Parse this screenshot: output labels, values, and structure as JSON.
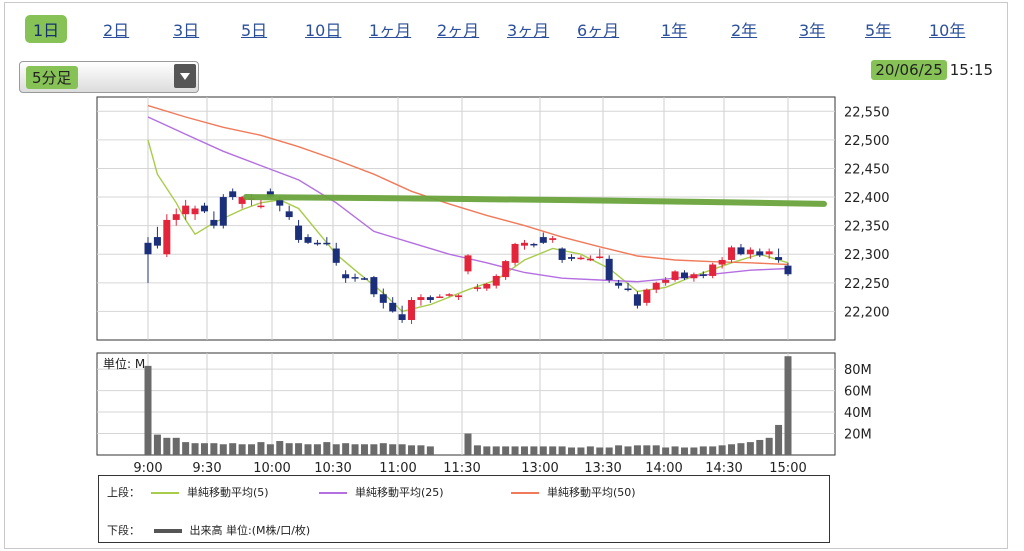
{
  "tabs": [
    "1日",
    "2日",
    "3日",
    "5日",
    "10日",
    "1ヶ月",
    "2ヶ月",
    "3ヶ月",
    "6ヶ月",
    "1年",
    "2年",
    "3年",
    "5年",
    "10年"
  ],
  "active_tab": 0,
  "period_select": {
    "value": "5分足"
  },
  "timestamp": {
    "date": "20/06/25",
    "time": "15:15"
  },
  "colors": {
    "up": "#e3243b",
    "down": "#1c2f7a",
    "ma5": "#a8cc4a",
    "ma25": "#b46fe0",
    "ma50": "#f07a5a",
    "volume": "#6a6a6a",
    "highlight": "#86c256"
  },
  "chart_data": {
    "type": "candlestick",
    "x_ticks": [
      "9:00",
      "9:30",
      "10:00",
      "10:30",
      "11:00",
      "11:30",
      "13:00",
      "13:30",
      "14:00",
      "14:30",
      "15:00"
    ],
    "y_ticks": [
      "22,550",
      "22,500",
      "22,450",
      "22,400",
      "22,350",
      "22,300",
      "22,250",
      "22,200"
    ],
    "ylim": [
      22150,
      22575
    ],
    "candles": [
      [
        22320,
        22330,
        22250,
        22300
      ],
      [
        22330,
        22348,
        22310,
        22315
      ],
      [
        22300,
        22370,
        22295,
        22360
      ],
      [
        22360,
        22380,
        22350,
        22370
      ],
      [
        22370,
        22395,
        22360,
        22385
      ],
      [
        22370,
        22385,
        22360,
        22380
      ],
      [
        22385,
        22390,
        22372,
        22375
      ],
      [
        22360,
        22375,
        22345,
        22350
      ],
      [
        22400,
        22405,
        22345,
        22350
      ],
      [
        22410,
        22415,
        22395,
        22400
      ],
      [
        22388,
        22402,
        22380,
        22400
      ],
      [
        22395,
        22405,
        22385,
        22398
      ],
      [
        22385,
        22395,
        22380,
        22385
      ],
      [
        22410,
        22415,
        22398,
        22400
      ],
      [
        22395,
        22400,
        22375,
        22385
      ],
      [
        22375,
        22385,
        22360,
        22365
      ],
      [
        22350,
        22360,
        22320,
        22325
      ],
      [
        22330,
        22335,
        22318,
        22320
      ],
      [
        22320,
        22325,
        22315,
        22318
      ],
      [
        22320,
        22330,
        22315,
        22318
      ],
      [
        22310,
        22320,
        22280,
        22285
      ],
      [
        22265,
        22272,
        22250,
        22258
      ],
      [
        22260,
        22266,
        22252,
        22258
      ],
      [
        22258,
        22260,
        22255,
        22256
      ],
      [
        22260,
        22262,
        22225,
        22230
      ],
      [
        22230,
        22240,
        22205,
        22215
      ],
      [
        22215,
        22225,
        22198,
        22200
      ],
      [
        22195,
        22210,
        22180,
        22185
      ],
      [
        22185,
        22225,
        22178,
        22220
      ],
      [
        22220,
        22230,
        22210,
        22225
      ],
      [
        22225,
        22228,
        22215,
        22220
      ],
      [
        22225,
        22230,
        22225,
        22226
      ],
      [
        22228,
        22232,
        22226,
        22230
      ],
      [
        22225,
        22230,
        22220,
        22228
      ],
      [
        22270,
        22300,
        22265,
        22298
      ],
      [
        22240,
        22248,
        22235,
        22242
      ],
      [
        22240,
        22250,
        22236,
        22248
      ],
      [
        22245,
        22265,
        22240,
        22262
      ],
      [
        22260,
        22290,
        22255,
        22288
      ],
      [
        22285,
        22320,
        22280,
        22318
      ],
      [
        22315,
        22325,
        22308,
        22320
      ],
      [
        22318,
        22320,
        22312,
        22316
      ],
      [
        22330,
        22338,
        22318,
        22320
      ],
      [
        22325,
        22332,
        22320,
        22328
      ],
      [
        22310,
        22312,
        22285,
        22290
      ],
      [
        22295,
        22300,
        22288,
        22292
      ],
      [
        22292,
        22298,
        22290,
        22294
      ],
      [
        22292,
        22298,
        22288,
        22292
      ],
      [
        22295,
        22310,
        22292,
        22296
      ],
      [
        22292,
        22298,
        22250,
        22255
      ],
      [
        22250,
        22255,
        22240,
        22245
      ],
      [
        22240,
        22250,
        22235,
        22238
      ],
      [
        22230,
        22235,
        22205,
        22210
      ],
      [
        22215,
        22240,
        22210,
        22238
      ],
      [
        22238,
        22252,
        22232,
        22250
      ],
      [
        22250,
        22260,
        22245,
        22255
      ],
      [
        22255,
        22272,
        22252,
        22270
      ],
      [
        22268,
        22272,
        22255,
        22258
      ],
      [
        22258,
        22268,
        22252,
        22265
      ],
      [
        22265,
        22270,
        22258,
        22262
      ],
      [
        22262,
        22285,
        22258,
        22282
      ],
      [
        22282,
        22295,
        22275,
        22290
      ],
      [
        22290,
        22315,
        22285,
        22312
      ],
      [
        22312,
        22318,
        22298,
        22300
      ],
      [
        22300,
        22312,
        22292,
        22308
      ],
      [
        22305,
        22310,
        22295,
        22298
      ],
      [
        22300,
        22310,
        22292,
        22305
      ],
      [
        22295,
        22310,
        22285,
        22290
      ],
      [
        22280,
        22285,
        22262,
        22265
      ]
    ],
    "ma_series": [
      {
        "name": "単純移動平均(5)",
        "color": "#a8cc4a",
        "points": [
          [
            0,
            22500
          ],
          [
            1,
            22440
          ],
          [
            3,
            22390
          ],
          [
            4,
            22360
          ],
          [
            5,
            22335
          ],
          [
            7,
            22355
          ],
          [
            10,
            22378
          ],
          [
            12,
            22390
          ],
          [
            14,
            22395
          ],
          [
            16,
            22380
          ],
          [
            18,
            22340
          ],
          [
            20,
            22300
          ],
          [
            22,
            22272
          ],
          [
            25,
            22232
          ],
          [
            27,
            22200
          ],
          [
            30,
            22212
          ],
          [
            34,
            22238
          ],
          [
            37,
            22255
          ],
          [
            40,
            22290
          ],
          [
            43,
            22310
          ],
          [
            46,
            22300
          ],
          [
            49,
            22275
          ],
          [
            52,
            22235
          ],
          [
            55,
            22242
          ],
          [
            58,
            22262
          ],
          [
            62,
            22285
          ],
          [
            65,
            22300
          ],
          [
            68,
            22285
          ]
        ]
      },
      {
        "name": "単純移動平均(25)",
        "color": "#b46fe0",
        "points": [
          [
            0,
            22540
          ],
          [
            4,
            22510
          ],
          [
            8,
            22480
          ],
          [
            12,
            22455
          ],
          [
            16,
            22430
          ],
          [
            20,
            22390
          ],
          [
            24,
            22340
          ],
          [
            28,
            22320
          ],
          [
            32,
            22300
          ],
          [
            36,
            22285
          ],
          [
            40,
            22268
          ],
          [
            44,
            22258
          ],
          [
            48,
            22255
          ],
          [
            52,
            22252
          ],
          [
            56,
            22258
          ],
          [
            60,
            22265
          ],
          [
            64,
            22272
          ],
          [
            68,
            22275
          ]
        ]
      },
      {
        "name": "単純移動平均(50)",
        "color": "#f07a5a",
        "points": [
          [
            0,
            22560
          ],
          [
            4,
            22540
          ],
          [
            8,
            22522
          ],
          [
            12,
            22508
          ],
          [
            16,
            22488
          ],
          [
            20,
            22465
          ],
          [
            24,
            22440
          ],
          [
            28,
            22410
          ],
          [
            32,
            22388
          ],
          [
            36,
            22368
          ],
          [
            40,
            22350
          ],
          [
            44,
            22330
          ],
          [
            48,
            22313
          ],
          [
            52,
            22297
          ],
          [
            56,
            22290
          ],
          [
            60,
            22287
          ],
          [
            64,
            22285
          ],
          [
            68,
            22282
          ]
        ]
      }
    ],
    "annotation_line": {
      "from": 22400,
      "to": 22388,
      "color": "#6aa33c"
    },
    "volume_unit_label": "単位: M",
    "volume_ticks": [
      "80M",
      "60M",
      "40M",
      "20M"
    ],
    "volume_ylim": [
      0,
      95
    ],
    "volume": [
      83,
      19,
      16,
      16,
      12,
      11,
      11,
      11,
      10,
      11,
      10,
      10,
      12,
      10,
      13,
      11,
      11,
      10,
      10,
      12,
      10,
      11,
      10,
      10,
      10,
      11,
      10,
      10,
      9,
      9,
      8,
      0,
      0,
      0,
      20,
      9,
      8,
      8,
      8,
      8,
      8,
      8,
      8,
      8,
      8,
      7,
      7,
      8,
      7,
      7,
      9,
      8,
      9,
      9,
      9,
      7,
      8,
      7,
      7,
      8,
      8,
      9,
      10,
      11,
      12,
      14,
      16,
      28,
      92
    ],
    "legend": {
      "upper_label": "上段：",
      "lower_label": "下段：",
      "lower_series": "出来高 単位:(M株/口/枚)"
    }
  }
}
